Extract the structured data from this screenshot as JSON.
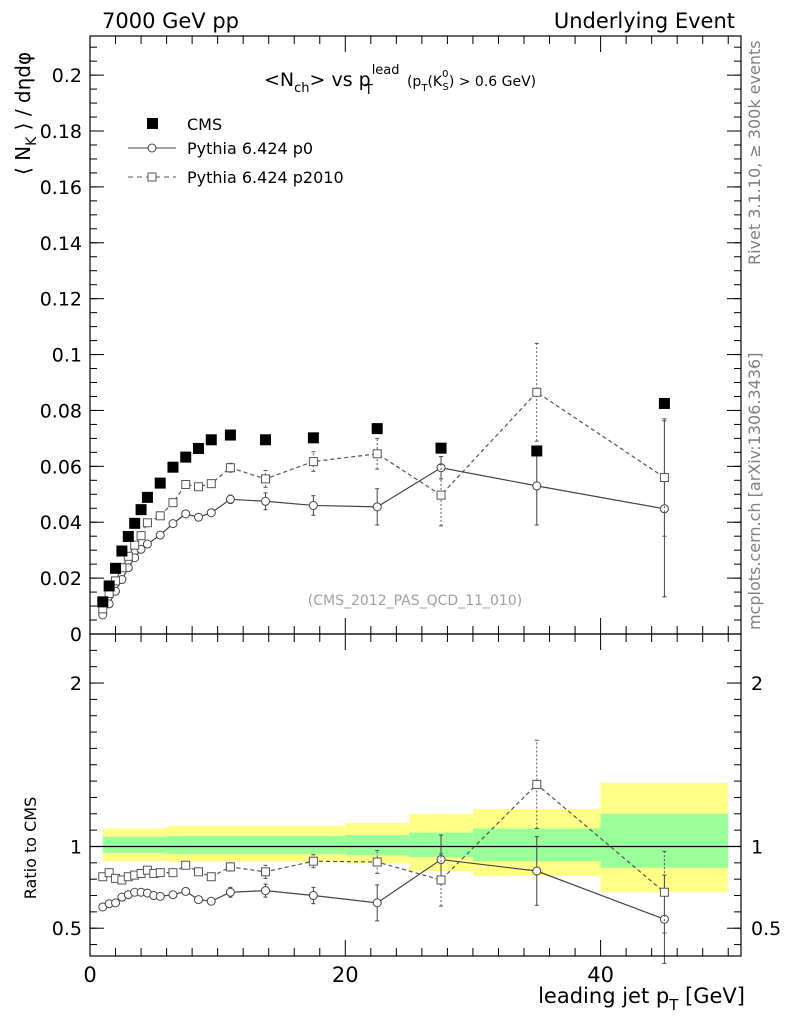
{
  "header": {
    "left": "7000 GeV pp",
    "right": "Underlying Event"
  },
  "side_labels": {
    "top": "Rivet 3.1.10, ≥ 300k events",
    "bottom": "mcplots.cern.ch [arXiv:1306.3436]"
  },
  "analysis_label": "(CMS_2012_PAS_QCD_11_010)",
  "colors": {
    "data": "#000000",
    "p0": "#444444",
    "p2010": "#555555",
    "band_inner": "#99ff99",
    "band_outer": "#ffff88"
  },
  "chart_data": [
    {
      "type": "scatter",
      "panel": "main",
      "title": "<Nch> vs pT lead (pT(KS0) > 0.6 GeV)",
      "title_parts": {
        "a": "<N",
        "a_sub": "ch",
        "b": "> vs p",
        "b_sub": "T",
        "b_sup": "lead",
        "c": " (p",
        "c_sub": "T",
        "d": "(K",
        "d_sup": "0",
        "d_sub": "S",
        "e": ") > 0.6 GeV)"
      },
      "xlabel": "leading jet pT [GeV]",
      "xlabel_parts": {
        "main": "leading jet p",
        "sub": "T",
        "end": " [GeV]"
      },
      "ylabel": "⟨ NK ⟩ / dηdφ",
      "ylabel_parts": {
        "a": "⟨ N",
        "sub": "K",
        "b": " ⟩ / dηdφ"
      },
      "xlim": [
        0,
        51
      ],
      "ylim": [
        0,
        0.214
      ],
      "x_ticks": [
        0,
        20,
        40
      ],
      "y_ticks": [
        0,
        0.02,
        0.04,
        0.06,
        0.08,
        0.1,
        0.12,
        0.14,
        0.16,
        0.18,
        0.2
      ],
      "y_tick_labels": [
        "0",
        "0.02",
        "0.04",
        "0.06",
        "0.08",
        "0.1",
        "0.12",
        "0.14",
        "0.16",
        "0.18",
        "0.2"
      ],
      "legend": {
        "placement": "top-left",
        "entries": [
          "CMS",
          "Pythia 6.424 p0",
          "Pythia 6.424 p2010"
        ]
      },
      "series": [
        {
          "name": "CMS",
          "marker": "filled-square",
          "x": [
            1.0,
            1.5,
            2.0,
            2.5,
            3.0,
            3.5,
            4.0,
            4.5,
            5.5,
            6.5,
            7.5,
            8.5,
            9.5,
            11.0,
            13.75,
            17.5,
            22.5,
            27.5,
            35,
            45
          ],
          "y": [
            0.0115,
            0.0172,
            0.0235,
            0.0297,
            0.0349,
            0.0396,
            0.0445,
            0.0489,
            0.054,
            0.0597,
            0.0633,
            0.0664,
            0.0695,
            0.0712,
            0.0695,
            0.0702,
            0.0735,
            0.0665,
            0.0655,
            0.0825
          ]
        },
        {
          "name": "Pythia 6.424 p0",
          "marker": "open-circle",
          "line": "solid",
          "x": [
            1.0,
            1.5,
            2.0,
            2.5,
            3.0,
            3.5,
            4.0,
            4.5,
            5.5,
            6.5,
            7.5,
            8.5,
            9.5,
            11.0,
            13.75,
            17.5,
            22.5,
            27.5,
            35,
            45
          ],
          "y": [
            0.0068,
            0.0108,
            0.0153,
            0.0195,
            0.0237,
            0.0273,
            0.0303,
            0.0322,
            0.0354,
            0.0395,
            0.043,
            0.0418,
            0.0434,
            0.0482,
            0.0475,
            0.046,
            0.0455,
            0.0595,
            0.053,
            0.0448
          ],
          "err": [
            0.0005,
            0.0005,
            0.0005,
            0.0006,
            0.0006,
            0.0006,
            0.0007,
            0.0007,
            0.0008,
            0.001,
            0.0012,
            0.0013,
            0.0014,
            0.0015,
            0.003,
            0.0035,
            0.0065,
            0.004,
            0.014,
            0.0315
          ]
        },
        {
          "name": "Pythia 6.424 p2010",
          "marker": "open-square",
          "line": "dashed",
          "x": [
            1.0,
            1.5,
            2.0,
            2.5,
            3.0,
            3.5,
            4.0,
            4.5,
            5.5,
            6.5,
            7.5,
            8.5,
            9.5,
            11.0,
            13.75,
            17.5,
            22.5,
            27.5,
            35,
            45
          ],
          "y": [
            0.009,
            0.0145,
            0.019,
            0.0237,
            0.0278,
            0.0318,
            0.0352,
            0.0398,
            0.0423,
            0.047,
            0.0535,
            0.0527,
            0.0538,
            0.0595,
            0.0555,
            0.0617,
            0.0645,
            0.0497,
            0.0865,
            0.056
          ],
          "err": [
            0.0006,
            0.0006,
            0.0006,
            0.0007,
            0.0007,
            0.0008,
            0.0008,
            0.0009,
            0.001,
            0.0011,
            0.0013,
            0.0013,
            0.0014,
            0.0016,
            0.003,
            0.0035,
            0.0055,
            0.011,
            0.0175,
            0.021
          ]
        }
      ]
    },
    {
      "type": "scatter",
      "panel": "ratio",
      "ylabel": "Ratio to CMS",
      "xlim": [
        0,
        51
      ],
      "ylim": [
        0.33,
        2.3
      ],
      "y_ticks": [
        0.5,
        1,
        2
      ],
      "y_tick_labels": [
        "0.5",
        "1",
        "2"
      ],
      "x_ticks": [
        0,
        20,
        40
      ],
      "x_tick_labels": [
        "0",
        "20",
        "40"
      ],
      "reference_line": 1,
      "bands": [
        {
          "x0": 1,
          "x1": 6,
          "inner": [
            0.96,
            1.06
          ],
          "outer": [
            0.91,
            1.11
          ]
        },
        {
          "x0": 6,
          "x1": 20,
          "inner": [
            0.955,
            1.065
          ],
          "outer": [
            0.905,
            1.125
          ]
        },
        {
          "x0": 20,
          "x1": 25,
          "inner": [
            0.945,
            1.07
          ],
          "outer": [
            0.895,
            1.145
          ]
        },
        {
          "x0": 25,
          "x1": 30,
          "inner": [
            0.935,
            1.085
          ],
          "outer": [
            0.85,
            1.2
          ]
        },
        {
          "x0": 30,
          "x1": 40,
          "inner": [
            0.91,
            1.11
          ],
          "outer": [
            0.82,
            1.23
          ]
        },
        {
          "x0": 40,
          "x1": 50,
          "inner": [
            0.87,
            1.2
          ],
          "outer": [
            0.72,
            1.39
          ]
        }
      ],
      "series": [
        {
          "name": "Pythia 6.424 p0",
          "marker": "open-circle",
          "line": "solid",
          "x": [
            1.0,
            1.5,
            2.0,
            2.5,
            3.0,
            3.5,
            4.0,
            4.5,
            5.0,
            5.5,
            6.5,
            7.5,
            8.5,
            9.5,
            11.0,
            13.75,
            17.5,
            22.5,
            27.5,
            35,
            45
          ],
          "y": [
            0.63,
            0.65,
            0.655,
            0.69,
            0.705,
            0.72,
            0.72,
            0.715,
            0.7,
            0.695,
            0.705,
            0.725,
            0.675,
            0.665,
            0.72,
            0.73,
            0.7,
            0.655,
            0.92,
            0.85,
            0.555
          ],
          "err": [
            0.01,
            0.01,
            0.01,
            0.01,
            0.01,
            0.01,
            0.01,
            0.01,
            0.01,
            0.01,
            0.015,
            0.02,
            0.02,
            0.02,
            0.03,
            0.04,
            0.05,
            0.11,
            0.15,
            0.21,
            0.27
          ]
        },
        {
          "name": "Pythia 6.424 p2010",
          "marker": "open-square",
          "line": "dashed",
          "x": [
            1.0,
            1.5,
            2.0,
            2.5,
            3.0,
            3.5,
            4.0,
            4.5,
            5.0,
            5.5,
            6.5,
            7.5,
            8.5,
            9.5,
            11.0,
            13.75,
            17.5,
            22.5,
            27.5,
            35,
            45
          ],
          "y": [
            0.815,
            0.84,
            0.805,
            0.795,
            0.815,
            0.825,
            0.835,
            0.855,
            0.835,
            0.84,
            0.84,
            0.885,
            0.845,
            0.815,
            0.875,
            0.845,
            0.91,
            0.905,
            0.795,
            1.38,
            0.72
          ],
          "err": [
            0.01,
            0.01,
            0.01,
            0.01,
            0.01,
            0.01,
            0.01,
            0.01,
            0.01,
            0.012,
            0.015,
            0.02,
            0.02,
            0.02,
            0.025,
            0.04,
            0.04,
            0.07,
            0.16,
            0.27,
            0.25
          ]
        }
      ]
    }
  ]
}
